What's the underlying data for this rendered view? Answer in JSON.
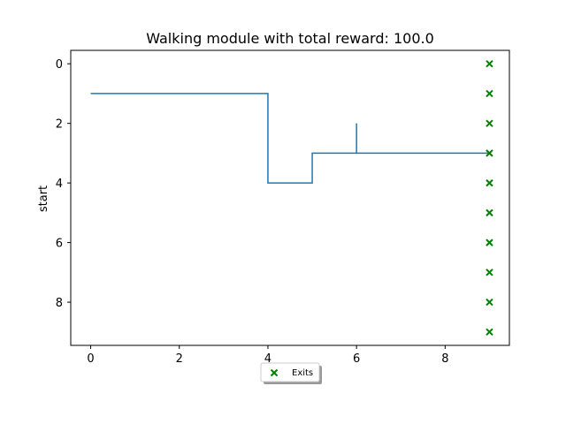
{
  "chart_data": {
    "type": "line",
    "title": "Walking module with total reward: 100.0",
    "xlabel": "",
    "ylabel": "start",
    "xlim": [
      -0.45,
      9.45
    ],
    "ylim": [
      9.45,
      -0.45
    ],
    "y_inverted": true,
    "xticks": [
      0,
      2,
      4,
      6,
      8
    ],
    "yticks": [
      0,
      2,
      4,
      6,
      8
    ],
    "grid": false,
    "legend_position": "below center",
    "series": [
      {
        "kind": "line",
        "color": "#1f77b4",
        "x": [
          0,
          4,
          4,
          5,
          5,
          6,
          6,
          6,
          9
        ],
        "y": [
          1,
          1,
          4,
          4,
          3,
          3,
          2,
          3,
          3
        ]
      },
      {
        "kind": "scatter",
        "name": "Exits",
        "marker": "x",
        "color": "#008000",
        "x": [
          9,
          9,
          9,
          9,
          9,
          9,
          9,
          9,
          9,
          9
        ],
        "y": [
          0,
          1,
          2,
          3,
          4,
          5,
          6,
          7,
          8,
          9
        ]
      }
    ]
  }
}
